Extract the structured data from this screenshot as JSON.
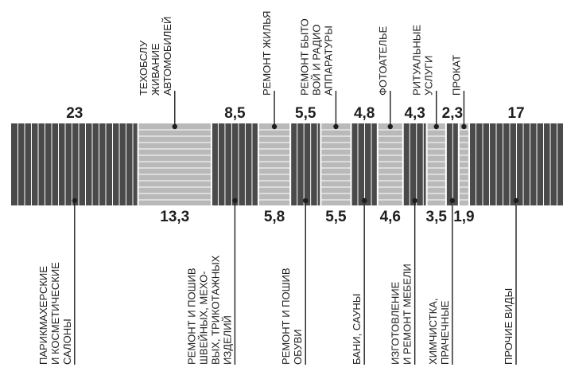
{
  "chart_data": {
    "type": "bar",
    "orientation": "stacked-horizontal-100",
    "unit": "%",
    "colors": {
      "dark": "#4a4a4a",
      "light": "#b9b9b9",
      "text": "#1e1e1e"
    },
    "segments": [
      {
        "value": 23,
        "value_label": "23",
        "label": [
          "ПАРИКМАХЕРСКИЕ",
          "И КОСМЕТИЧЕСКИЕ",
          "САЛОНЫ"
        ],
        "side": "bottom",
        "shade": "dark"
      },
      {
        "value": 13.3,
        "value_label": "13,3",
        "label": [
          "ТЕХОБСЛУ",
          "ЖИВАНИЕ",
          "АВТОМОБИЛЕЙ"
        ],
        "side": "top",
        "shade": "light"
      },
      {
        "value": 8.5,
        "value_label": "8,5",
        "label": [
          "РЕМОНТ И ПОШИВ",
          "ШВЕЙНЫХ, МЕХО-",
          "ВЫХ, ТРИКОТАЖНЫХ",
          "ИЗДЕЛИЙ"
        ],
        "side": "bottom",
        "shade": "dark"
      },
      {
        "value": 5.8,
        "value_label": "5,8",
        "label": [
          "РЕМОНТ ЖИЛЬЯ"
        ],
        "side": "top",
        "shade": "light"
      },
      {
        "value": 5.5,
        "value_label": "5,5",
        "label": [
          "РЕМОНТ И ПОШИВ",
          "ОБУВИ"
        ],
        "side": "bottom",
        "shade": "dark"
      },
      {
        "value": 5.5,
        "value_label": "5,5",
        "label": [
          "РЕМОНТ БЫТО",
          "ВОЙ И РАДИО",
          "АППАРАТУРЫ"
        ],
        "side": "top",
        "shade": "light"
      },
      {
        "value": 4.8,
        "value_label": "4,8",
        "label": [
          "БАНИ, САУНЫ"
        ],
        "side": "bottom",
        "shade": "dark"
      },
      {
        "value": 4.6,
        "value_label": "4,6",
        "label": [
          "ФОТОАТЕЛЬЕ"
        ],
        "side": "top",
        "shade": "light"
      },
      {
        "value": 4.3,
        "value_label": "4,3",
        "label": [
          "ИЗГОТОВЛЕНИЕ",
          "И РЕМОНТ МЕБЕЛИ"
        ],
        "side": "bottom",
        "shade": "dark"
      },
      {
        "value": 3.5,
        "value_label": "3,5",
        "label": [
          "РИТУАЛЬНЫЕ",
          "УСЛУГИ"
        ],
        "side": "top",
        "shade": "light"
      },
      {
        "value": 2.3,
        "value_label": "2,3",
        "label": [
          "ХИМЧИСТКА,",
          "ПРАЧЕЧНЫЕ"
        ],
        "side": "bottom",
        "shade": "dark"
      },
      {
        "value": 1.9,
        "value_label": "1,9",
        "label": [
          "ПРОКАТ"
        ],
        "side": "top",
        "shade": "light"
      },
      {
        "value": 17,
        "value_label": "17",
        "label": [
          "ПРОЧИЕ ВИДЫ"
        ],
        "side": "bottom",
        "shade": "dark"
      }
    ]
  }
}
